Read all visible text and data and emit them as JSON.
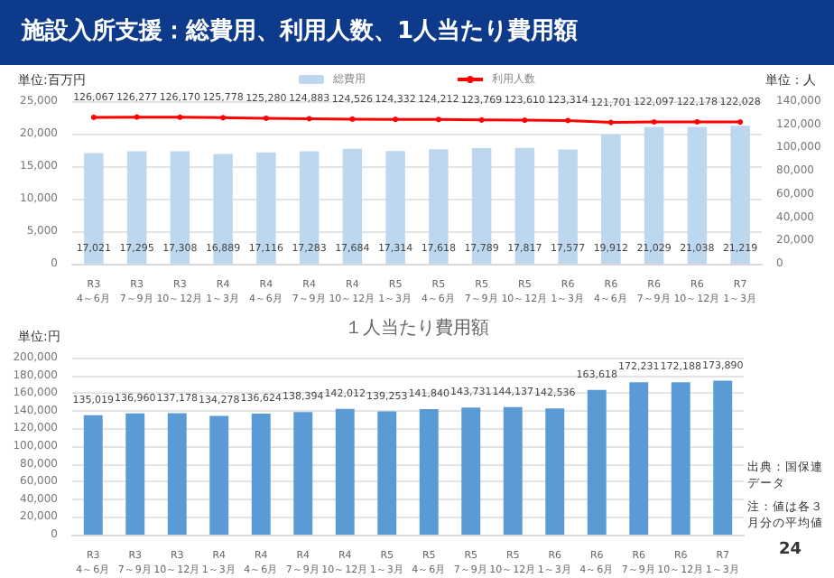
{
  "chart_data": [
    {
      "type": "bar",
      "title": "施設入所支援：総費用、利用人数、1人当たり費用額",
      "ylabel": "単位:百万円",
      "y2label": "単位：人",
      "categories": [
        "R3\n4～6月",
        "R3\n7～9月",
        "R3\n10～12月",
        "R4\n1～3月",
        "R4\n4～6月",
        "R4\n7～9月",
        "R4\n10～12月",
        "R5\n1～3月",
        "R5\n4～6月",
        "R5\n7～9月",
        "R5\n10～12月",
        "R6\n1～3月",
        "R6\n4～6月",
        "R6\n7～9月",
        "R6\n10～12月",
        "R7\n1～3月"
      ],
      "series": [
        {
          "name": "総費用",
          "color": "#bdd7ee",
          "values": [
            17021,
            17295,
            17308,
            16889,
            17116,
            17283,
            17684,
            17314,
            17618,
            17789,
            17817,
            17577,
            19912,
            21029,
            21038,
            21219
          ],
          "value_labels": [
            "17,021",
            "17,295",
            "17,308",
            "16,889",
            "17,116",
            "17,283",
            "17,684",
            "17,314",
            "17,618",
            "17,789",
            "17,817",
            "17,577",
            "19,912",
            "21,029",
            "21,038",
            "21,219"
          ]
        },
        {
          "name": "利用人数",
          "type": "line",
          "axis": "y2",
          "color": "#ff0000",
          "values": [
            126067,
            126277,
            126170,
            125778,
            125280,
            124883,
            124526,
            124332,
            124212,
            123769,
            123610,
            123314,
            121701,
            122097,
            122178,
            122028
          ],
          "value_labels": [
            "126,067",
            "126,277",
            "126,170",
            "125,778",
            "125,280",
            "124,883",
            "124,526",
            "124,332",
            "124,212",
            "123,769",
            "123,610",
            "123,314",
            "121,701",
            "122,097",
            "122,178",
            "122,028"
          ]
        }
      ],
      "ylim": [
        0,
        25000
      ],
      "yticks": [
        0,
        {
          "value": 5000,
          "label": "5,000"
        },
        {
          "value": 10000,
          "label": "10,000"
        },
        {
          "value": 15000,
          "label": "15,000"
        },
        {
          "value": 20000,
          "label": "20,000"
        },
        {
          "value": 25000,
          "label": "25,000"
        }
      ],
      "y2lim": [
        0,
        140000
      ],
      "y2ticks": [
        0,
        {
          "value": 20000,
          "label": "20,000"
        },
        {
          "value": 40000,
          "label": "40,000"
        },
        {
          "value": 60000,
          "label": "60,000"
        },
        {
          "value": 80000,
          "label": "80,000"
        },
        {
          "value": 100000,
          "label": "100,000"
        },
        {
          "value": 120000,
          "label": "120,000"
        },
        {
          "value": 140000,
          "label": "140,000"
        }
      ],
      "grid": "y",
      "legend": "top",
      "marker": "circle"
    },
    {
      "type": "bar",
      "title": "１人当たり費用額",
      "ylabel": "単位:円",
      "categories": [
        "R3\n4～6月",
        "R3\n7～9月",
        "R3\n10～12月",
        "R4\n1～3月",
        "R4\n4～6月",
        "R4\n7～9月",
        "R4\n10～12月",
        "R5\n1～3月",
        "R5\n4～6月",
        "R5\n7～9月",
        "R5\n10～12月",
        "R6\n1～3月",
        "R6\n4～6月",
        "R6\n7～9月",
        "R6\n10～12月",
        "R7\n1～3月"
      ],
      "series": [
        {
          "color": "#5b9bd5",
          "values": [
            135019,
            136960,
            137178,
            134278,
            136624,
            138394,
            142012,
            139253,
            141840,
            143731,
            144137,
            142536,
            163618,
            172231,
            172188,
            173890
          ],
          "value_labels": [
            "135,019",
            "136,960",
            "137,178",
            "134,278",
            "136,624",
            "138,394",
            "142,012",
            "139,253",
            "141,840",
            "143,731",
            "144,137",
            "142,536",
            "163,618",
            "172,231",
            "172,188",
            "173,890"
          ]
        }
      ],
      "ylim": [
        0,
        200000
      ],
      "yticks": [
        0,
        {
          "value": 20000,
          "label": "20,000"
        },
        {
          "value": 40000,
          "label": "40,000"
        },
        {
          "value": 60000,
          "label": "60,000"
        },
        {
          "value": 80000,
          "label": "80,000"
        },
        {
          "value": 100000,
          "label": "100,000"
        },
        {
          "value": 120000,
          "label": "120,000"
        },
        {
          "value": 140000,
          "label": "140,000"
        },
        {
          "value": 160000,
          "label": "160,000"
        },
        {
          "value": 180000,
          "label": "180,000"
        },
        {
          "value": 200000,
          "label": "200,000"
        }
      ],
      "grid": "y",
      "annotations": [
        "出典：国保連データ",
        "注：値は各３月分の平均値",
        "24"
      ]
    }
  ]
}
